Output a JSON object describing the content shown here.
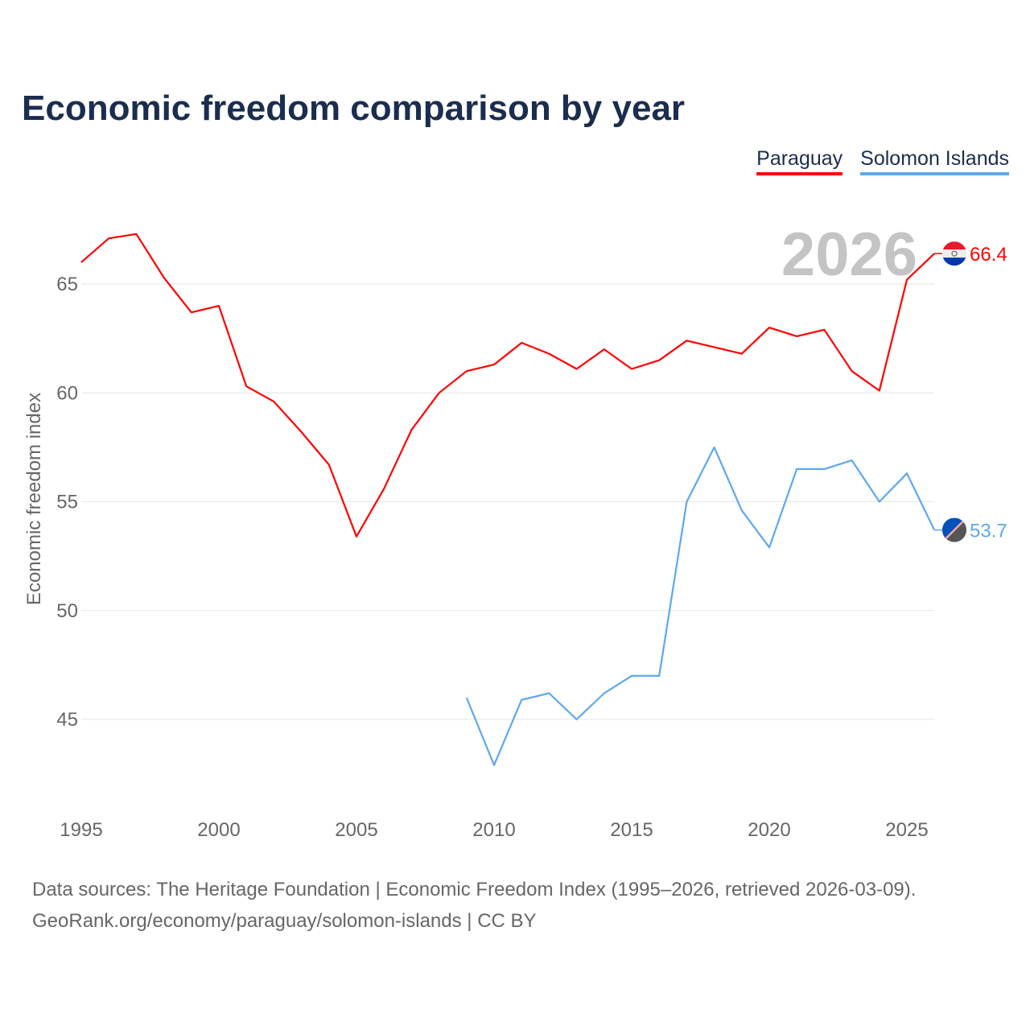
{
  "title": "Economic freedom comparison by year",
  "footer": {
    "line1": "Data sources: The Heritage Foundation | Economic Freedom Index (1995–2026, retrieved 2026-03-09).",
    "line2": "GeoRank.org/economy/paraguay/solomon-islands | CC BY"
  },
  "chart_data": {
    "type": "line",
    "title": "Economic freedom comparison by year",
    "xlabel": "",
    "ylabel": "Economic freedom index",
    "xlim": [
      1995,
      2026
    ],
    "ylim": [
      41,
      69
    ],
    "xticks": [
      "1995",
      "2000",
      "2005",
      "2010",
      "2015",
      "2020",
      "2025"
    ],
    "yticks": [
      "45",
      "50",
      "55",
      "60",
      "65"
    ],
    "year_watermark": "2026",
    "legend_placement": "top-right",
    "series": [
      {
        "name": "Paraguay",
        "color": "#ff0000",
        "end_label": "66.4",
        "x": [
          1995,
          1996,
          1997,
          1998,
          1999,
          2000,
          2001,
          2002,
          2003,
          2004,
          2005,
          2006,
          2007,
          2008,
          2009,
          2010,
          2011,
          2012,
          2013,
          2014,
          2015,
          2016,
          2017,
          2018,
          2019,
          2020,
          2021,
          2022,
          2023,
          2024,
          2025,
          2026
        ],
        "values": [
          66.0,
          67.1,
          67.3,
          65.3,
          63.7,
          64.0,
          60.3,
          59.6,
          58.2,
          56.7,
          53.4,
          55.6,
          58.3,
          60.0,
          61.0,
          61.3,
          62.3,
          61.8,
          61.1,
          62.0,
          61.1,
          61.5,
          62.4,
          62.1,
          61.8,
          63.0,
          62.6,
          62.9,
          61.0,
          60.1,
          65.2,
          66.4
        ]
      },
      {
        "name": "Solomon Islands",
        "color": "#5ea8ec",
        "end_label": "53.7",
        "x": [
          2009,
          2010,
          2011,
          2012,
          2013,
          2014,
          2015,
          2016,
          2017,
          2018,
          2019,
          2020,
          2021,
          2022,
          2023,
          2024,
          2025,
          2026
        ],
        "values": [
          46.0,
          42.9,
          45.9,
          46.2,
          45.0,
          46.2,
          47.0,
          47.0,
          55.0,
          57.5,
          54.6,
          52.9,
          56.5,
          56.5,
          56.9,
          55.0,
          56.3,
          53.7
        ]
      }
    ]
  }
}
